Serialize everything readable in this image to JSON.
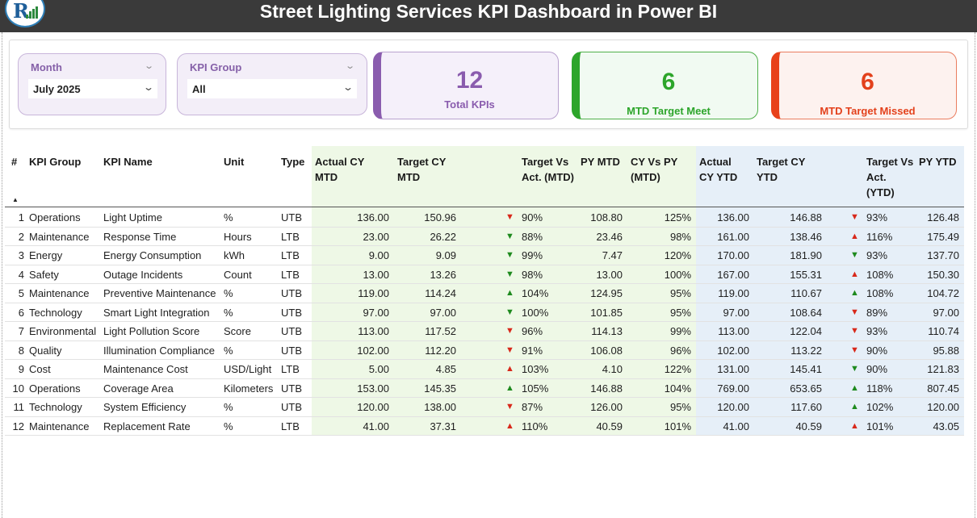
{
  "header": {
    "title": "Street Lighting Services KPI Dashboard in Power BI",
    "logo_text": "R"
  },
  "filters": {
    "month": {
      "label": "Month",
      "value": "July 2025"
    },
    "kpi_group": {
      "label": "KPI Group",
      "value": "All"
    }
  },
  "cards": {
    "total": {
      "value": "12",
      "caption": "Total KPIs"
    },
    "meet": {
      "value": "6",
      "caption": "MTD Target Meet"
    },
    "missed": {
      "value": "6",
      "caption": "MTD Target Missed"
    }
  },
  "colors": {
    "purple": "#8a5cae",
    "green": "#2da52b",
    "red": "#e3411c",
    "mtd_band": "#eef8e6",
    "ytd_band": "#e6eff8",
    "title_bar": "#3a3a3a"
  },
  "table": {
    "columns": {
      "num": "#",
      "group": "KPI Group",
      "name": "KPI Name",
      "unit": "Unit",
      "type": "Type",
      "actual_mtd": "Actual CY MTD",
      "target_mtd": "Target CY MTD",
      "tva_mtd": "Target Vs Act. (MTD)",
      "py_mtd": "PY MTD",
      "cyvpy_mtd": "CY Vs PY (MTD)",
      "actual_ytd": "Actual CY YTD",
      "target_ytd": "Target CY YTD",
      "tva_ytd": "Target Vs Act. (YTD)",
      "py_ytd": "PY YTD"
    },
    "rows": [
      {
        "num": "1",
        "group": "Operations",
        "name": "Light Uptime",
        "unit": "%",
        "type": "UTB",
        "actual_mtd": "136.00",
        "target_mtd": "150.96",
        "mtd_icon": "down-red",
        "tva_mtd": "90%",
        "py_mtd": "108.80",
        "cyvpy_mtd": "125%",
        "actual_ytd": "136.00",
        "target_ytd": "146.88",
        "ytd_icon": "down-red",
        "tva_ytd": "93%",
        "py_ytd": "126.48"
      },
      {
        "num": "2",
        "group": "Maintenance",
        "name": "Response Time",
        "unit": "Hours",
        "type": "LTB",
        "actual_mtd": "23.00",
        "target_mtd": "26.22",
        "mtd_icon": "down-green",
        "tva_mtd": "88%",
        "py_mtd": "23.46",
        "cyvpy_mtd": "98%",
        "actual_ytd": "161.00",
        "target_ytd": "138.46",
        "ytd_icon": "up-red",
        "tva_ytd": "116%",
        "py_ytd": "175.49"
      },
      {
        "num": "3",
        "group": "Energy",
        "name": "Energy Consumption",
        "unit": "kWh",
        "type": "LTB",
        "actual_mtd": "9.00",
        "target_mtd": "9.09",
        "mtd_icon": "down-green",
        "tva_mtd": "99%",
        "py_mtd": "7.47",
        "cyvpy_mtd": "120%",
        "actual_ytd": "170.00",
        "target_ytd": "181.90",
        "ytd_icon": "down-green",
        "tva_ytd": "93%",
        "py_ytd": "137.70"
      },
      {
        "num": "4",
        "group": "Safety",
        "name": "Outage Incidents",
        "unit": "Count",
        "type": "LTB",
        "actual_mtd": "13.00",
        "target_mtd": "13.26",
        "mtd_icon": "down-green",
        "tva_mtd": "98%",
        "py_mtd": "13.00",
        "cyvpy_mtd": "100%",
        "actual_ytd": "167.00",
        "target_ytd": "155.31",
        "ytd_icon": "up-red",
        "tva_ytd": "108%",
        "py_ytd": "150.30"
      },
      {
        "num": "5",
        "group": "Maintenance",
        "name": "Preventive Maintenance",
        "unit": "%",
        "type": "UTB",
        "actual_mtd": "119.00",
        "target_mtd": "114.24",
        "mtd_icon": "up-green",
        "tva_mtd": "104%",
        "py_mtd": "124.95",
        "cyvpy_mtd": "95%",
        "actual_ytd": "119.00",
        "target_ytd": "110.67",
        "ytd_icon": "up-green",
        "tva_ytd": "108%",
        "py_ytd": "104.72"
      },
      {
        "num": "6",
        "group": "Technology",
        "name": "Smart Light Integration",
        "unit": "%",
        "type": "UTB",
        "actual_mtd": "97.00",
        "target_mtd": "97.00",
        "mtd_icon": "down-green",
        "tva_mtd": "100%",
        "py_mtd": "101.85",
        "cyvpy_mtd": "95%",
        "actual_ytd": "97.00",
        "target_ytd": "108.64",
        "ytd_icon": "down-red",
        "tva_ytd": "89%",
        "py_ytd": "97.00"
      },
      {
        "num": "7",
        "group": "Environmental",
        "name": "Light Pollution Score",
        "unit": "Score",
        "type": "UTB",
        "actual_mtd": "113.00",
        "target_mtd": "117.52",
        "mtd_icon": "down-red",
        "tva_mtd": "96%",
        "py_mtd": "114.13",
        "cyvpy_mtd": "99%",
        "actual_ytd": "113.00",
        "target_ytd": "122.04",
        "ytd_icon": "down-red",
        "tva_ytd": "93%",
        "py_ytd": "110.74"
      },
      {
        "num": "8",
        "group": "Quality",
        "name": "Illumination Compliance",
        "unit": "%",
        "type": "UTB",
        "actual_mtd": "102.00",
        "target_mtd": "112.20",
        "mtd_icon": "down-red",
        "tva_mtd": "91%",
        "py_mtd": "106.08",
        "cyvpy_mtd": "96%",
        "actual_ytd": "102.00",
        "target_ytd": "113.22",
        "ytd_icon": "down-red",
        "tva_ytd": "90%",
        "py_ytd": "95.88"
      },
      {
        "num": "9",
        "group": "Cost",
        "name": "Maintenance Cost",
        "unit": "USD/Light",
        "type": "LTB",
        "actual_mtd": "5.00",
        "target_mtd": "4.85",
        "mtd_icon": "up-red",
        "tva_mtd": "103%",
        "py_mtd": "4.10",
        "cyvpy_mtd": "122%",
        "actual_ytd": "131.00",
        "target_ytd": "145.41",
        "ytd_icon": "down-green",
        "tva_ytd": "90%",
        "py_ytd": "121.83"
      },
      {
        "num": "10",
        "group": "Operations",
        "name": "Coverage Area",
        "unit": "Kilometers",
        "type": "UTB",
        "actual_mtd": "153.00",
        "target_mtd": "145.35",
        "mtd_icon": "up-green",
        "tva_mtd": "105%",
        "py_mtd": "146.88",
        "cyvpy_mtd": "104%",
        "actual_ytd": "769.00",
        "target_ytd": "653.65",
        "ytd_icon": "up-green",
        "tva_ytd": "118%",
        "py_ytd": "807.45"
      },
      {
        "num": "11",
        "group": "Technology",
        "name": "System Efficiency",
        "unit": "%",
        "type": "UTB",
        "actual_mtd": "120.00",
        "target_mtd": "138.00",
        "mtd_icon": "down-red",
        "tva_mtd": "87%",
        "py_mtd": "126.00",
        "cyvpy_mtd": "95%",
        "actual_ytd": "120.00",
        "target_ytd": "117.60",
        "ytd_icon": "up-green",
        "tva_ytd": "102%",
        "py_ytd": "120.00"
      },
      {
        "num": "12",
        "group": "Maintenance",
        "name": "Replacement Rate",
        "unit": "%",
        "type": "LTB",
        "actual_mtd": "41.00",
        "target_mtd": "37.31",
        "mtd_icon": "up-red",
        "tva_mtd": "110%",
        "py_mtd": "40.59",
        "cyvpy_mtd": "101%",
        "actual_ytd": "41.00",
        "target_ytd": "40.59",
        "ytd_icon": "up-red",
        "tva_ytd": "101%",
        "py_ytd": "43.05"
      }
    ]
  }
}
